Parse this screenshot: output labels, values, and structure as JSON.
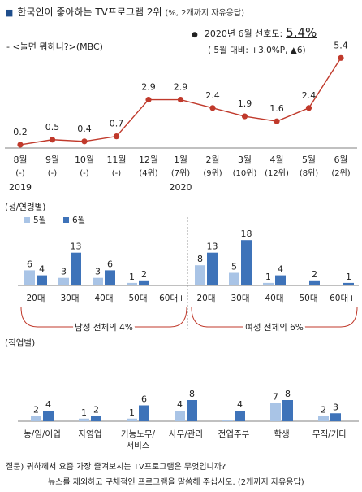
{
  "header": {
    "title": "한국인이 좋아하는 TV프로그램 2위",
    "title_note": "(%, 2개까지 자유응답)",
    "subtitle": "- <놀면 뭐하니?>(MBC)",
    "summary_label": "2020년 6월 선호도:",
    "summary_value": "5.4%",
    "summary_change": "( 5월 대비: +3.0%P, ▲6)"
  },
  "colors": {
    "trend_line": "#c0392b",
    "may": "#a9c4e6",
    "june": "#3e73b9",
    "axis": "#808080"
  },
  "chart_data": [
    {
      "type": "line",
      "x": [
        {
          "month": "8월",
          "rank": "(-)",
          "year": "2019"
        },
        {
          "month": "9월",
          "rank": "(-)",
          "year": ""
        },
        {
          "month": "10월",
          "rank": "(-)",
          "year": ""
        },
        {
          "month": "11월",
          "rank": "(-)",
          "year": ""
        },
        {
          "month": "12월",
          "rank": "(4위)",
          "year": ""
        },
        {
          "month": "1월",
          "rank": "(7위)",
          "year": "2020"
        },
        {
          "month": "2월",
          "rank": "(9위)",
          "year": ""
        },
        {
          "month": "3월",
          "rank": "(10위)",
          "year": ""
        },
        {
          "month": "4월",
          "rank": "(12위)",
          "year": ""
        },
        {
          "month": "5월",
          "rank": "(8위)",
          "year": ""
        },
        {
          "month": "6월",
          "rank": "(2위)",
          "year": ""
        }
      ],
      "values": [
        0.2,
        0.5,
        0.4,
        0.7,
        2.9,
        2.9,
        2.4,
        1.9,
        1.6,
        2.4,
        5.4
      ],
      "labels": [
        "0.2",
        "0.5",
        "0.4",
        "0.7",
        "2.9",
        "2.9",
        "2.4",
        "1.9",
        "1.6",
        "2.4",
        "5.4"
      ],
      "ylim": [
        0,
        6
      ]
    },
    {
      "type": "bar",
      "title": "(성/연령별)",
      "legend": [
        "5월",
        "6월"
      ],
      "groups": [
        {
          "name": "남성",
          "total_label": "남성 전체의 4%",
          "categories": [
            "20대",
            "30대",
            "40대",
            "50대",
            "60대+"
          ],
          "series": [
            {
              "name": "5월",
              "values": [
                6,
                3,
                3,
                1,
                0
              ],
              "labels": [
                "6",
                "3",
                "3",
                "1",
                ""
              ]
            },
            {
              "name": "6월",
              "values": [
                4,
                13,
                6,
                2,
                0
              ],
              "labels": [
                "4",
                "13",
                "6",
                "2",
                ""
              ]
            }
          ]
        },
        {
          "name": "여성",
          "total_label": "여성 전체의 6%",
          "categories": [
            "20대",
            "30대",
            "40대",
            "50대",
            "60대+"
          ],
          "series": [
            {
              "name": "5월",
              "values": [
                8,
                5,
                1,
                0.3,
                0
              ],
              "labels": [
                "8",
                "5",
                "1",
                "",
                ""
              ]
            },
            {
              "name": "6월",
              "values": [
                13,
                18,
                4,
                2,
                1
              ],
              "labels": [
                "13",
                "18",
                "4",
                "2",
                "1"
              ]
            }
          ]
        }
      ],
      "ylim": [
        0,
        18
      ]
    },
    {
      "type": "bar",
      "title": "(직업별)",
      "categories": [
        "농/임/어업",
        "자영업",
        "기능노무/\n서비스",
        "사무/관리",
        "전업주부",
        "학생",
        "무직/기타"
      ],
      "series": [
        {
          "name": "5월",
          "values": [
            2,
            1,
            1,
            4,
            0.3,
            7,
            2
          ],
          "labels": [
            "2",
            "1",
            "1",
            "4",
            "",
            "7",
            "2"
          ]
        },
        {
          "name": "6월",
          "values": [
            4,
            2,
            6,
            8,
            4,
            8,
            3
          ],
          "labels": [
            "4",
            "2",
            "6",
            "8",
            "4",
            "8",
            "3"
          ]
        }
      ],
      "ylim": [
        0,
        9
      ]
    }
  ],
  "footer": {
    "question_1": "질문) 귀하께서 요즘 가장 즐겨보시는 TV프로그램은 무엇입니까?",
    "question_2": "뉴스를 제외하고 구체적인 프로그램을 말씀해 주십시오. (2개까지 자유응답)"
  }
}
